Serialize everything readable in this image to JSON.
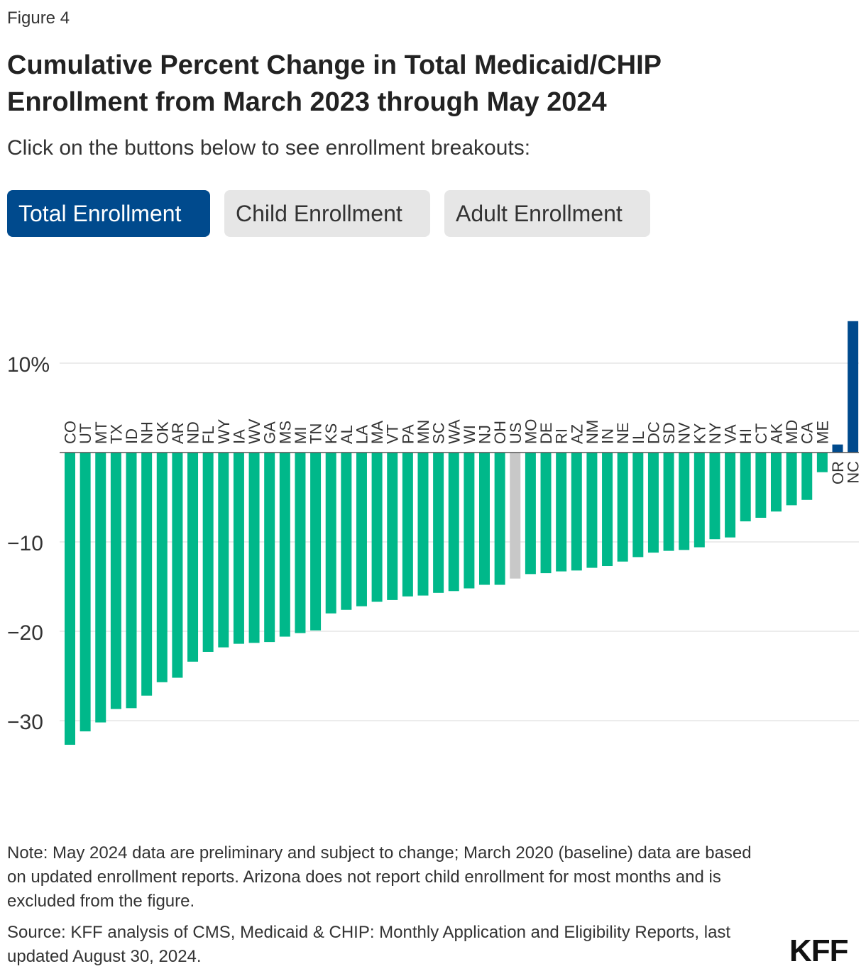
{
  "figure_label": "Figure 4",
  "title": "Cumulative Percent Change in Total Medicaid/CHIP Enrollment from March 2023 through May 2024",
  "subtitle": "Click on the buttons below to see enrollment breakouts:",
  "buttons": {
    "total": "Total Enrollment",
    "child": "Child Enrollment",
    "adult": "Adult Enrollment"
  },
  "note": "Note: May 2024 data are preliminary and subject to change; March 2020 (baseline) data are based on updated enrollment reports. Arizona does not report child enrollment for most months and is excluded from the figure.",
  "source": "Source: KFF analysis of CMS, Medicaid & CHIP: Monthly Application and Eligibility Reports, last updated August 30, 2024.",
  "logo": "KFF",
  "colors": {
    "decline": "#00b88a",
    "increase": "#004a8d",
    "us": "#c8c8c8",
    "grid": "#d9d9d9",
    "active_button": "#004a8d",
    "inactive_button": "#e6e6e6"
  },
  "chart_data": {
    "type": "bar",
    "categories": [
      "CO",
      "UT",
      "MT",
      "TX",
      "ID",
      "NH",
      "OK",
      "AR",
      "ND",
      "FL",
      "WY",
      "IA",
      "WV",
      "GA",
      "MS",
      "MI",
      "TN",
      "KS",
      "AL",
      "LA",
      "MA",
      "VT",
      "PA",
      "MN",
      "SC",
      "WA",
      "WI",
      "NJ",
      "OH",
      "US",
      "MO",
      "DE",
      "RI",
      "AZ",
      "NM",
      "IN",
      "NE",
      "IL",
      "DC",
      "SD",
      "NV",
      "KY",
      "NY",
      "VA",
      "HI",
      "CT",
      "AK",
      "MD",
      "CA",
      "ME",
      "OR",
      "NC"
    ],
    "values": [
      -32.7,
      -31.2,
      -30.2,
      -28.7,
      -28.6,
      -27.2,
      -25.7,
      -25.2,
      -23.4,
      -22.3,
      -21.8,
      -21.4,
      -21.3,
      -21.2,
      -20.6,
      -20.2,
      -19.9,
      -18.0,
      -17.6,
      -17.2,
      -16.7,
      -16.5,
      -16.1,
      -16.0,
      -15.7,
      -15.5,
      -15.2,
      -14.8,
      -14.8,
      -14.1,
      -13.6,
      -13.5,
      -13.3,
      -13.2,
      -12.9,
      -12.7,
      -12.2,
      -11.7,
      -11.2,
      -11.0,
      -10.9,
      -10.6,
      -9.7,
      -9.5,
      -7.7,
      -7.3,
      -6.6,
      -5.9,
      -5.3,
      -2.2,
      0.9,
      14.7
    ],
    "ylim": [
      -35,
      15
    ],
    "yticks": [
      10,
      0,
      -10,
      -20,
      -30
    ],
    "ytick_labels": [
      "10%",
      "",
      "−10",
      "−20",
      "−30"
    ],
    "grid": true,
    "highlight": {
      "US": "us"
    }
  }
}
